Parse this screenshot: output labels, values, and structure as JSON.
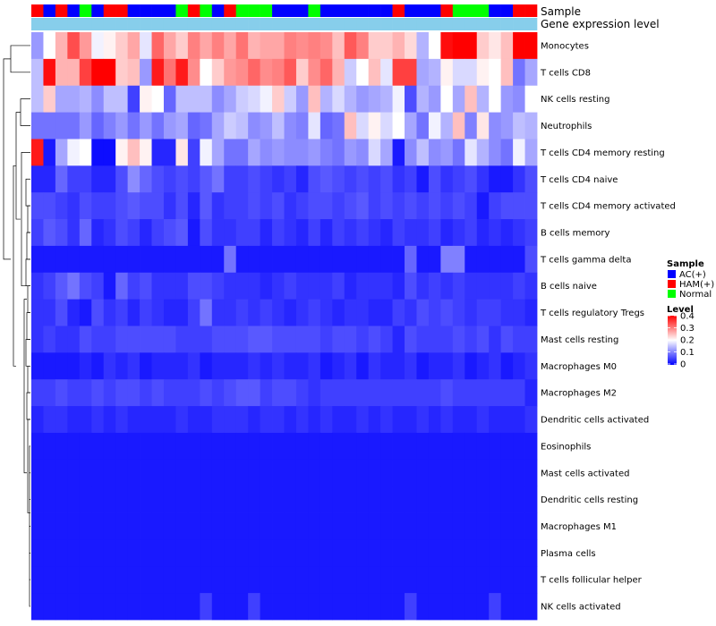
{
  "chart_data": {
    "type": "heatmap",
    "title": "",
    "annotation_tracks": [
      {
        "name": "Sample",
        "values": [
          "HAM(+)",
          "AC(+)",
          "HAM(+)",
          "AC(+)",
          "Normal",
          "AC(+)",
          "HAM(+)",
          "HAM(+)",
          "AC(+)",
          "AC(+)",
          "AC(+)",
          "AC(+)",
          "Normal",
          "HAM(+)",
          "Normal",
          "AC(+)",
          "HAM(+)",
          "Normal",
          "Normal",
          "Normal",
          "AC(+)",
          "AC(+)",
          "AC(+)",
          "Normal",
          "AC(+)",
          "AC(+)",
          "AC(+)",
          "AC(+)",
          "AC(+)",
          "AC(+)",
          "HAM(+)",
          "AC(+)",
          "AC(+)",
          "AC(+)",
          "HAM(+)",
          "Normal",
          "Normal",
          "Normal",
          "AC(+)",
          "AC(+)",
          "HAM(+)",
          "HAM(+)"
        ]
      },
      {
        "name": "Gene expression level",
        "values": [
          "light",
          "light",
          "light",
          "light",
          "light",
          "light",
          "light",
          "light",
          "light",
          "light",
          "light",
          "light",
          "light",
          "light",
          "light",
          "light",
          "light",
          "light",
          "light",
          "light",
          "light",
          "light",
          "light",
          "light",
          "light",
          "light",
          "light",
          "light",
          "light",
          "light",
          "light",
          "light",
          "light",
          "light",
          "light",
          "light",
          "light",
          "light",
          "light",
          "light",
          "light",
          "light"
        ]
      }
    ],
    "rows": [
      "Monocytes",
      "T cells CD8",
      "NK cells resting",
      "Neutrophils",
      "T cells CD4 memory resting",
      "T cells CD4 naive",
      "T cells CD4 memory activated",
      "B cells memory",
      "T cells gamma delta",
      "B cells naive",
      "T cells regulatory  Tregs",
      "Mast cells resting",
      "Macrophages M0",
      "Macrophages M2",
      "Dendritic cells activated",
      "Eosinophils",
      "Mast cells activated",
      "Dendritic cells resting",
      "Macrophages M1",
      "Plasma cells",
      "T cells follicular helper",
      "NK cells activated"
    ],
    "columns_count": 42,
    "values": [
      [
        0.12,
        0.2,
        0.26,
        0.34,
        0.28,
        0.19,
        0.21,
        0.24,
        0.27,
        0.18,
        0.32,
        0.27,
        0.24,
        0.3,
        0.27,
        0.3,
        0.27,
        0.31,
        0.26,
        0.27,
        0.27,
        0.3,
        0.29,
        0.3,
        0.29,
        0.25,
        0.33,
        0.3,
        0.24,
        0.24,
        0.26,
        0.23,
        0.14,
        0.2,
        0.39,
        0.41,
        0.4,
        0.24,
        0.22,
        0.25,
        0.41,
        0.4
      ],
      [
        0.15,
        0.39,
        0.26,
        0.26,
        0.35,
        0.4,
        0.4,
        0.24,
        0.25,
        0.12,
        0.38,
        0.31,
        0.38,
        0.29,
        0.2,
        0.24,
        0.28,
        0.29,
        0.32,
        0.29,
        0.3,
        0.33,
        0.24,
        0.29,
        0.32,
        0.26,
        0.16,
        0.2,
        0.25,
        0.18,
        0.35,
        0.35,
        0.13,
        0.14,
        0.21,
        0.17,
        0.17,
        0.21,
        0.2,
        0.25,
        0.09,
        0.13
      ],
      [
        0.15,
        0.24,
        0.13,
        0.13,
        0.14,
        0.11,
        0.15,
        0.15,
        0.05,
        0.21,
        0.2,
        0.08,
        0.15,
        0.15,
        0.15,
        0.11,
        0.13,
        0.16,
        0.17,
        0.19,
        0.24,
        0.16,
        0.12,
        0.25,
        0.14,
        0.17,
        0.14,
        0.12,
        0.13,
        0.14,
        0.19,
        0.06,
        0.14,
        0.12,
        0.2,
        0.13,
        0.25,
        0.14,
        0.2,
        0.12,
        0.11,
        0.2
      ],
      [
        0.09,
        0.09,
        0.09,
        0.09,
        0.12,
        0.08,
        0.1,
        0.12,
        0.09,
        0.12,
        0.09,
        0.12,
        0.13,
        0.08,
        0.09,
        0.13,
        0.16,
        0.15,
        0.11,
        0.12,
        0.15,
        0.11,
        0.1,
        0.18,
        0.08,
        0.09,
        0.25,
        0.17,
        0.21,
        0.17,
        0.2,
        0.13,
        0.09,
        0.19,
        0.14,
        0.25,
        0.1,
        0.22,
        0.11,
        0.12,
        0.15,
        0.14
      ],
      [
        0.38,
        0.02,
        0.13,
        0.19,
        0.2,
        0.01,
        0.01,
        0.21,
        0.25,
        0.21,
        0.03,
        0.03,
        0.22,
        0.05,
        0.19,
        0.13,
        0.09,
        0.09,
        0.13,
        0.11,
        0.12,
        0.11,
        0.11,
        0.12,
        0.1,
        0.09,
        0.12,
        0.11,
        0.17,
        0.13,
        0.02,
        0.11,
        0.15,
        0.11,
        0.12,
        0.09,
        0.18,
        0.14,
        0.11,
        0.09,
        0.19,
        0.13
      ],
      [
        0.03,
        0.03,
        0.08,
        0.05,
        0.05,
        0.03,
        0.03,
        0.06,
        0.11,
        0.08,
        0.06,
        0.05,
        0.06,
        0.05,
        0.07,
        0.09,
        0.05,
        0.05,
        0.06,
        0.05,
        0.04,
        0.05,
        0.03,
        0.06,
        0.07,
        0.06,
        0.05,
        0.06,
        0.05,
        0.06,
        0.04,
        0.05,
        0.02,
        0.06,
        0.04,
        0.05,
        0.06,
        0.04,
        0.02,
        0.02,
        0.04,
        0.06
      ],
      [
        0.06,
        0.06,
        0.05,
        0.04,
        0.06,
        0.05,
        0.05,
        0.06,
        0.07,
        0.06,
        0.06,
        0.04,
        0.06,
        0.03,
        0.07,
        0.04,
        0.05,
        0.05,
        0.06,
        0.05,
        0.06,
        0.04,
        0.05,
        0.06,
        0.06,
        0.05,
        0.06,
        0.07,
        0.05,
        0.06,
        0.05,
        0.06,
        0.05,
        0.06,
        0.05,
        0.06,
        0.05,
        0.02,
        0.05,
        0.06,
        0.06,
        0.06
      ],
      [
        0.05,
        0.07,
        0.06,
        0.04,
        0.08,
        0.03,
        0.04,
        0.06,
        0.05,
        0.03,
        0.05,
        0.06,
        0.07,
        0.02,
        0.06,
        0.04,
        0.04,
        0.05,
        0.05,
        0.03,
        0.05,
        0.04,
        0.03,
        0.05,
        0.03,
        0.05,
        0.04,
        0.05,
        0.04,
        0.03,
        0.05,
        0.04,
        0.04,
        0.05,
        0.03,
        0.04,
        0.05,
        0.03,
        0.04,
        0.03,
        0.04,
        0.05
      ],
      [
        0.02,
        0.02,
        0.02,
        0.02,
        0.02,
        0.02,
        0.02,
        0.02,
        0.02,
        0.02,
        0.02,
        0.02,
        0.02,
        0.02,
        0.02,
        0.02,
        0.09,
        0.02,
        0.02,
        0.02,
        0.02,
        0.02,
        0.02,
        0.02,
        0.02,
        0.02,
        0.02,
        0.02,
        0.02,
        0.02,
        0.02,
        0.08,
        0.02,
        0.02,
        0.1,
        0.1,
        0.02,
        0.02,
        0.02,
        0.02,
        0.02,
        0.06
      ],
      [
        0.04,
        0.05,
        0.07,
        0.09,
        0.06,
        0.05,
        0.02,
        0.08,
        0.05,
        0.06,
        0.04,
        0.04,
        0.04,
        0.06,
        0.06,
        0.05,
        0.04,
        0.04,
        0.04,
        0.03,
        0.04,
        0.05,
        0.04,
        0.04,
        0.04,
        0.05,
        0.03,
        0.04,
        0.04,
        0.04,
        0.03,
        0.06,
        0.04,
        0.05,
        0.04,
        0.05,
        0.04,
        0.04,
        0.04,
        0.04,
        0.05,
        0.04
      ],
      [
        0.04,
        0.04,
        0.06,
        0.03,
        0.02,
        0.06,
        0.04,
        0.05,
        0.03,
        0.05,
        0.04,
        0.03,
        0.03,
        0.05,
        0.09,
        0.04,
        0.04,
        0.05,
        0.04,
        0.05,
        0.04,
        0.03,
        0.04,
        0.05,
        0.04,
        0.03,
        0.04,
        0.04,
        0.03,
        0.03,
        0.05,
        0.04,
        0.06,
        0.05,
        0.06,
        0.05,
        0.04,
        0.05,
        0.05,
        0.04,
        0.04,
        0.03
      ],
      [
        0.04,
        0.05,
        0.04,
        0.04,
        0.06,
        0.05,
        0.05,
        0.06,
        0.06,
        0.06,
        0.06,
        0.06,
        0.05,
        0.05,
        0.05,
        0.06,
        0.06,
        0.06,
        0.07,
        0.07,
        0.06,
        0.06,
        0.06,
        0.06,
        0.05,
        0.06,
        0.06,
        0.05,
        0.06,
        0.05,
        0.03,
        0.06,
        0.05,
        0.05,
        0.05,
        0.06,
        0.05,
        0.06,
        0.04,
        0.06,
        0.05,
        0.05
      ],
      [
        0.02,
        0.02,
        0.02,
        0.02,
        0.03,
        0.02,
        0.04,
        0.03,
        0.04,
        0.02,
        0.03,
        0.03,
        0.03,
        0.04,
        0.02,
        0.03,
        0.03,
        0.03,
        0.04,
        0.03,
        0.04,
        0.03,
        0.03,
        0.04,
        0.02,
        0.03,
        0.04,
        0.02,
        0.04,
        0.03,
        0.03,
        0.04,
        0.02,
        0.03,
        0.03,
        0.04,
        0.02,
        0.03,
        0.04,
        0.02,
        0.03,
        0.04
      ],
      [
        0.05,
        0.05,
        0.06,
        0.05,
        0.05,
        0.06,
        0.05,
        0.06,
        0.06,
        0.05,
        0.06,
        0.05,
        0.05,
        0.05,
        0.06,
        0.05,
        0.06,
        0.07,
        0.07,
        0.05,
        0.06,
        0.06,
        0.05,
        0.04,
        0.05,
        0.05,
        0.05,
        0.05,
        0.05,
        0.05,
        0.05,
        0.05,
        0.05,
        0.05,
        0.06,
        0.05,
        0.05,
        0.05,
        0.05,
        0.05,
        0.05,
        0.03
      ],
      [
        0.03,
        0.04,
        0.04,
        0.03,
        0.03,
        0.04,
        0.03,
        0.04,
        0.03,
        0.03,
        0.03,
        0.03,
        0.04,
        0.03,
        0.03,
        0.04,
        0.04,
        0.04,
        0.03,
        0.04,
        0.04,
        0.03,
        0.04,
        0.03,
        0.04,
        0.03,
        0.03,
        0.04,
        0.03,
        0.04,
        0.03,
        0.03,
        0.04,
        0.03,
        0.04,
        0.03,
        0.03,
        0.04,
        0.03,
        0.03,
        0.03,
        0.04
      ],
      [
        0.02,
        0.02,
        0.02,
        0.02,
        0.02,
        0.02,
        0.02,
        0.02,
        0.02,
        0.02,
        0.02,
        0.02,
        0.02,
        0.02,
        0.02,
        0.02,
        0.02,
        0.02,
        0.02,
        0.02,
        0.02,
        0.02,
        0.02,
        0.02,
        0.02,
        0.02,
        0.02,
        0.02,
        0.02,
        0.02,
        0.02,
        0.02,
        0.02,
        0.02,
        0.02,
        0.02,
        0.02,
        0.02,
        0.02,
        0.02,
        0.02,
        0.02
      ],
      [
        0.02,
        0.02,
        0.02,
        0.02,
        0.02,
        0.02,
        0.02,
        0.02,
        0.02,
        0.02,
        0.02,
        0.02,
        0.02,
        0.02,
        0.02,
        0.02,
        0.02,
        0.02,
        0.02,
        0.02,
        0.02,
        0.02,
        0.02,
        0.02,
        0.02,
        0.02,
        0.02,
        0.02,
        0.02,
        0.02,
        0.02,
        0.02,
        0.02,
        0.02,
        0.02,
        0.02,
        0.02,
        0.02,
        0.02,
        0.02,
        0.02,
        0.02
      ],
      [
        0.02,
        0.02,
        0.02,
        0.02,
        0.02,
        0.02,
        0.02,
        0.02,
        0.02,
        0.02,
        0.02,
        0.02,
        0.02,
        0.02,
        0.02,
        0.02,
        0.02,
        0.02,
        0.02,
        0.02,
        0.02,
        0.02,
        0.02,
        0.02,
        0.02,
        0.02,
        0.02,
        0.02,
        0.02,
        0.02,
        0.02,
        0.02,
        0.02,
        0.02,
        0.02,
        0.02,
        0.02,
        0.02,
        0.02,
        0.02,
        0.02,
        0.02
      ],
      [
        0.02,
        0.02,
        0.02,
        0.02,
        0.02,
        0.02,
        0.02,
        0.02,
        0.02,
        0.02,
        0.02,
        0.02,
        0.02,
        0.02,
        0.02,
        0.02,
        0.02,
        0.02,
        0.02,
        0.02,
        0.02,
        0.02,
        0.02,
        0.02,
        0.02,
        0.02,
        0.02,
        0.02,
        0.02,
        0.02,
        0.02,
        0.02,
        0.02,
        0.02,
        0.02,
        0.02,
        0.02,
        0.02,
        0.02,
        0.02,
        0.02,
        0.02
      ],
      [
        0.02,
        0.02,
        0.02,
        0.02,
        0.02,
        0.02,
        0.02,
        0.02,
        0.02,
        0.02,
        0.02,
        0.02,
        0.02,
        0.02,
        0.02,
        0.02,
        0.02,
        0.02,
        0.02,
        0.02,
        0.02,
        0.02,
        0.02,
        0.02,
        0.02,
        0.02,
        0.02,
        0.02,
        0.02,
        0.02,
        0.02,
        0.02,
        0.02,
        0.02,
        0.02,
        0.02,
        0.02,
        0.02,
        0.02,
        0.02,
        0.02,
        0.02
      ],
      [
        0.02,
        0.02,
        0.02,
        0.02,
        0.02,
        0.02,
        0.02,
        0.02,
        0.02,
        0.02,
        0.02,
        0.02,
        0.02,
        0.02,
        0.02,
        0.02,
        0.02,
        0.02,
        0.02,
        0.02,
        0.02,
        0.02,
        0.02,
        0.02,
        0.02,
        0.02,
        0.02,
        0.02,
        0.02,
        0.02,
        0.02,
        0.02,
        0.02,
        0.02,
        0.02,
        0.02,
        0.02,
        0.02,
        0.02,
        0.02,
        0.02,
        0.02
      ],
      [
        0.02,
        0.02,
        0.02,
        0.02,
        0.02,
        0.02,
        0.02,
        0.02,
        0.02,
        0.02,
        0.02,
        0.02,
        0.02,
        0.02,
        0.05,
        0.02,
        0.02,
        0.02,
        0.05,
        0.02,
        0.02,
        0.02,
        0.02,
        0.02,
        0.02,
        0.02,
        0.02,
        0.02,
        0.02,
        0.02,
        0.02,
        0.05,
        0.02,
        0.02,
        0.02,
        0.02,
        0.02,
        0.02,
        0.05,
        0.02,
        0.02,
        0.02
      ]
    ],
    "legend": {
      "sample": {
        "title": "Sample",
        "entries": [
          {
            "label": "AC(+)",
            "color": "#0000ff"
          },
          {
            "label": "HAM(+)",
            "color": "#ff0000"
          },
          {
            "label": "Normal",
            "color": "#00ff00"
          }
        ]
      },
      "level": {
        "title": "Level",
        "range": [
          0,
          0.4
        ],
        "ticks": [
          "0.4",
          "0.3",
          "0.2",
          "0.1",
          "0"
        ],
        "colors": [
          "#0000ff",
          "#ffffff",
          "#ff0000"
        ]
      }
    },
    "track_colors": {
      "light": "#87ceeb"
    }
  }
}
